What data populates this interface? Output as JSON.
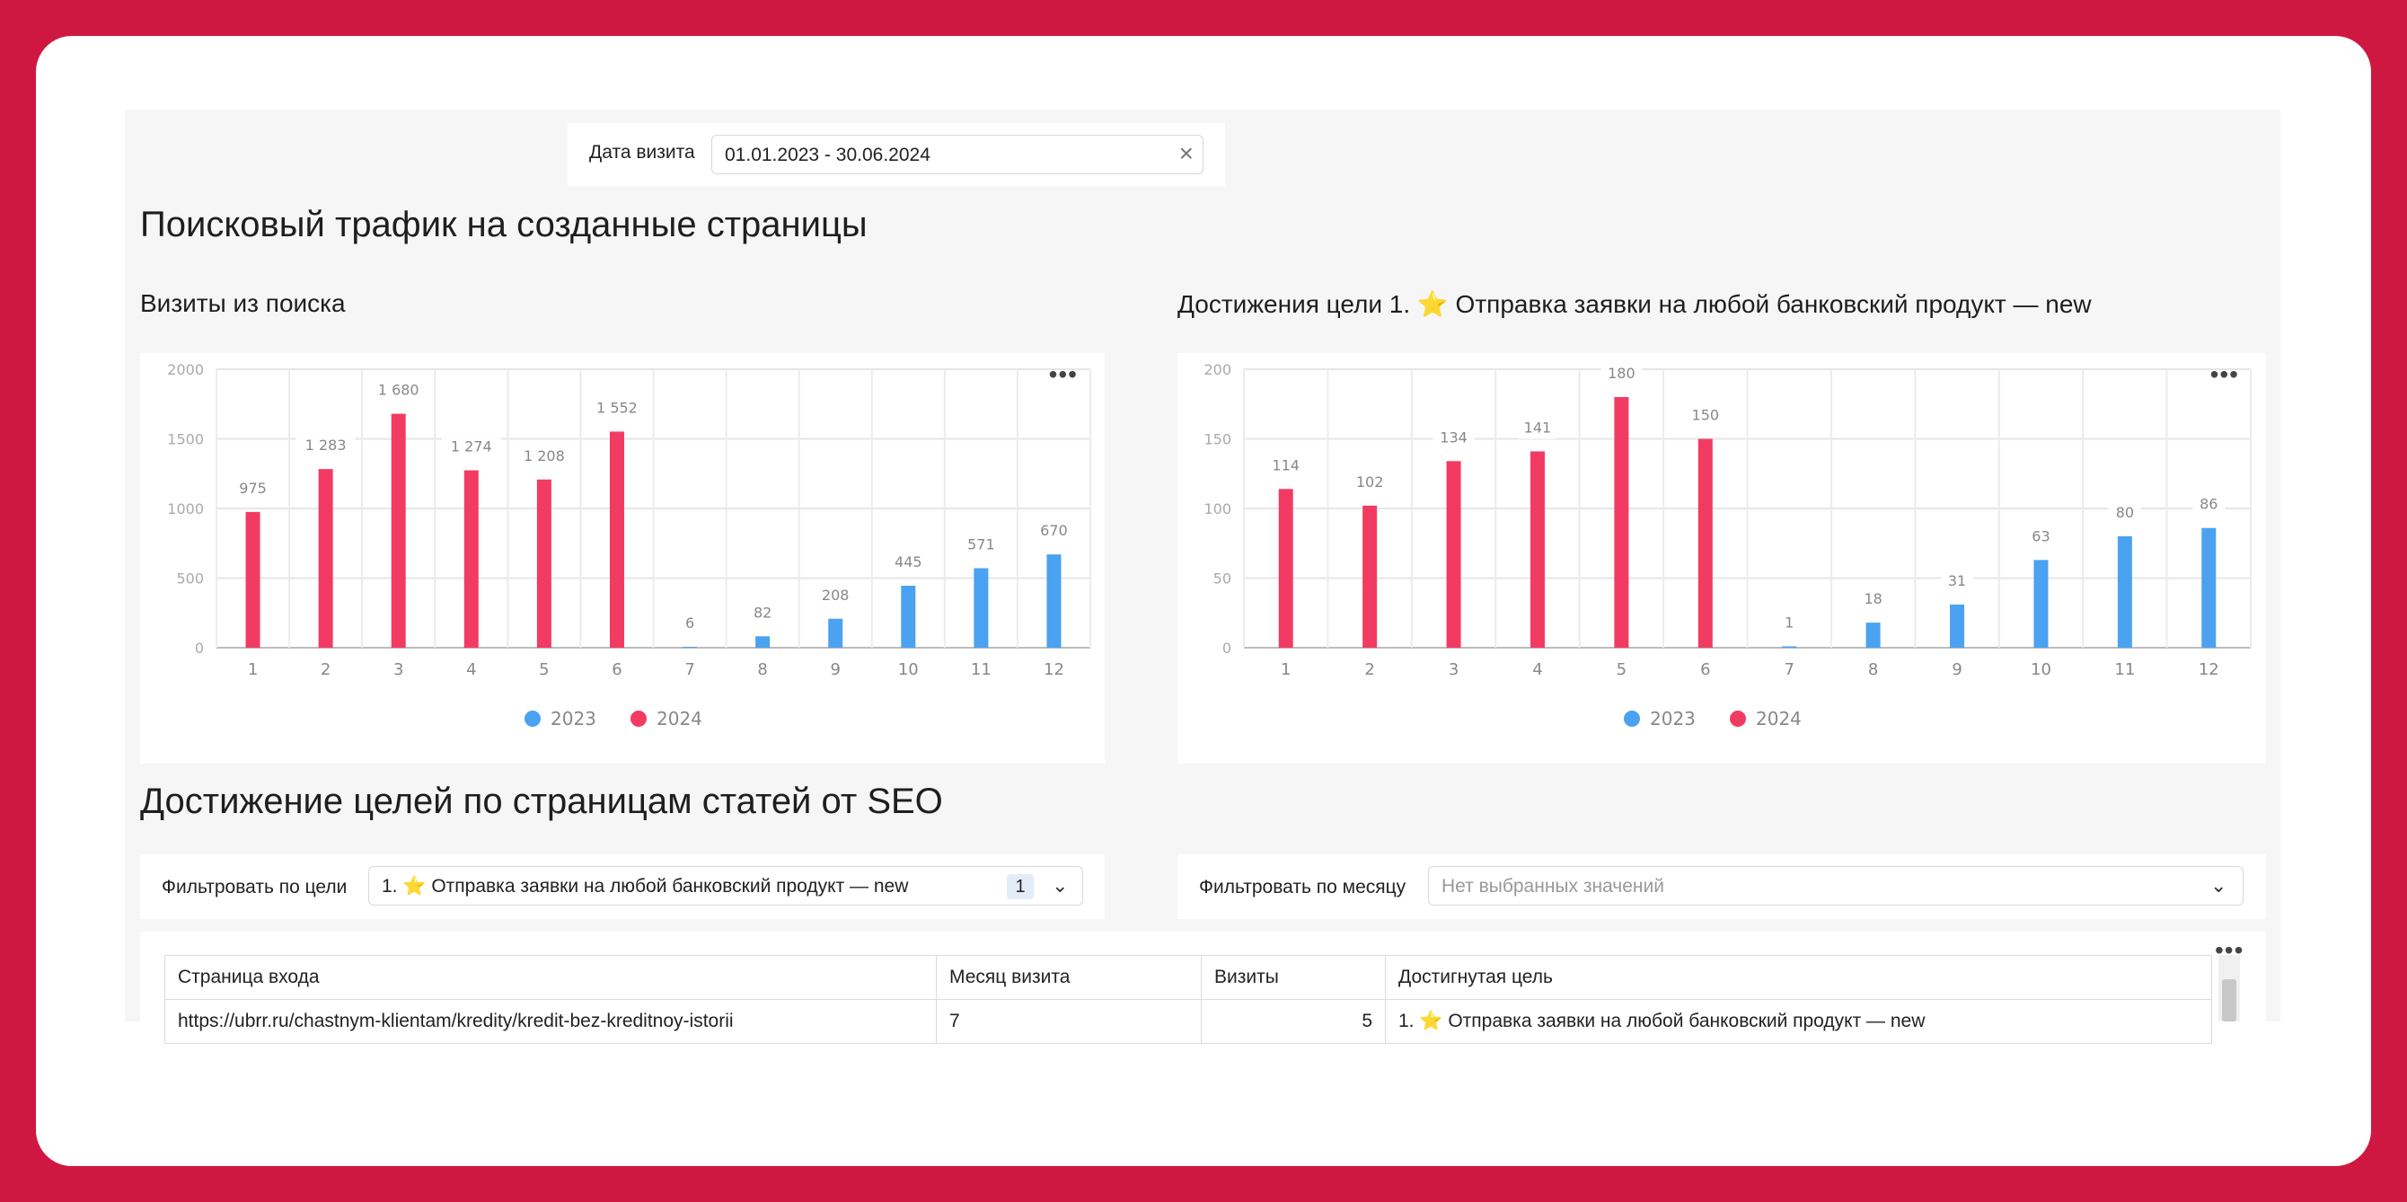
{
  "filters": {
    "date_label": "Дата визита",
    "date_value": "01.01.2023 - 30.06.2024"
  },
  "section1": {
    "title": "Поисковый трафик на созданные страницы"
  },
  "chart1_title": "Визиты из поиска",
  "chart2_title": "Достижения цели 1. ⭐ Отправка заявки на любой банковский продукт — new",
  "section2": {
    "title": "Достижение целей по страницам статей от SEO"
  },
  "goal_filter": {
    "label": "Фильтровать по цели",
    "value": "1. ⭐ Отправка заявки на любой банковский продукт — new",
    "count": "1"
  },
  "month_filter": {
    "label": "Фильтровать по месяцу",
    "placeholder": "Нет выбранных значений"
  },
  "table": {
    "headers": [
      "Страница входа",
      "Месяц визита",
      "Визиты",
      "Достигнутая цель"
    ],
    "rows": [
      [
        "https://ubrr.ru/chastnym-klientam/kredity/kredit-bez-kreditnoy-istorii",
        "7",
        "5",
        "1. ⭐ Отправка заявки на любой банковский продукт — new"
      ]
    ]
  },
  "colors": {
    "series_2023": "#4aa2f0",
    "series_2024": "#f23b63",
    "frame": "#cf1841"
  },
  "chart_data": [
    {
      "type": "bar",
      "categories": [
        "1",
        "2",
        "3",
        "4",
        "5",
        "6",
        "7",
        "8",
        "9",
        "10",
        "11",
        "12"
      ],
      "ylim": [
        0,
        2000
      ],
      "yticks": [
        "0",
        "500",
        "1000",
        "1500",
        "2000"
      ],
      "legend_position": "bottom",
      "grid": true,
      "series": [
        {
          "name": "2023",
          "color": "#4aa2f0",
          "values": [
            null,
            null,
            null,
            null,
            null,
            null,
            6,
            82,
            208,
            445,
            571,
            670
          ],
          "labels": [
            "",
            "",
            "",
            "",
            "",
            "",
            "6",
            "82",
            "208",
            "445",
            "571",
            "670"
          ]
        },
        {
          "name": "2024",
          "color": "#f23b63",
          "values": [
            975,
            1283,
            1680,
            1274,
            1208,
            1552,
            null,
            null,
            null,
            null,
            null,
            null
          ],
          "labels": [
            "975",
            "1 283",
            "1 680",
            "1 274",
            "1 208",
            "1 552",
            "",
            "",
            "",
            "",
            "",
            ""
          ]
        }
      ]
    },
    {
      "type": "bar",
      "categories": [
        "1",
        "2",
        "3",
        "4",
        "5",
        "6",
        "7",
        "8",
        "9",
        "10",
        "11",
        "12"
      ],
      "ylim": [
        0,
        200
      ],
      "yticks": [
        "0",
        "50",
        "100",
        "150",
        "200"
      ],
      "legend_position": "bottom",
      "grid": true,
      "series": [
        {
          "name": "2023",
          "color": "#4aa2f0",
          "values": [
            null,
            null,
            null,
            null,
            null,
            null,
            1,
            18,
            31,
            63,
            80,
            86
          ],
          "labels": [
            "",
            "",
            "",
            "",
            "",
            "",
            "1",
            "18",
            "31",
            "63",
            "80",
            "86"
          ]
        },
        {
          "name": "2024",
          "color": "#f23b63",
          "values": [
            114,
            102,
            134,
            141,
            180,
            150,
            null,
            null,
            null,
            null,
            null,
            null
          ],
          "labels": [
            "114",
            "102",
            "134",
            "141",
            "180",
            "150",
            "",
            "",
            "",
            "",
            "",
            ""
          ]
        }
      ]
    }
  ]
}
